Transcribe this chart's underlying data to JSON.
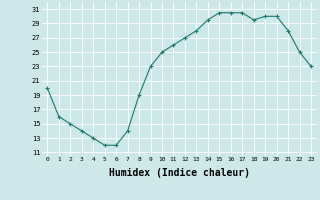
{
  "x": [
    0,
    1,
    2,
    3,
    4,
    5,
    6,
    7,
    8,
    9,
    10,
    11,
    12,
    13,
    14,
    15,
    16,
    17,
    18,
    19,
    20,
    21,
    22,
    23
  ],
  "y": [
    20,
    16,
    15,
    14,
    13,
    12,
    12,
    14,
    19,
    23,
    25,
    26,
    27,
    28,
    29.5,
    30.5,
    30.5,
    30.5,
    29.5,
    30,
    30,
    28,
    25,
    23
  ],
  "line_color": "#1a7a6e",
  "marker": "+",
  "marker_size": 3,
  "marker_lw": 0.8,
  "line_width": 0.8,
  "bg_color": "#cce8e8",
  "grid_color": "#ffffff",
  "xlabel": "Humidex (Indice chaleur)",
  "xlabel_fontsize": 7,
  "yticks": [
    11,
    13,
    15,
    17,
    19,
    21,
    23,
    25,
    27,
    29,
    31
  ],
  "xticks": [
    0,
    1,
    2,
    3,
    4,
    5,
    6,
    7,
    8,
    9,
    10,
    11,
    12,
    13,
    14,
    15,
    16,
    17,
    18,
    19,
    20,
    21,
    22,
    23
  ],
  "xlim": [
    -0.5,
    23.5
  ],
  "ylim": [
    10.5,
    32.0
  ]
}
